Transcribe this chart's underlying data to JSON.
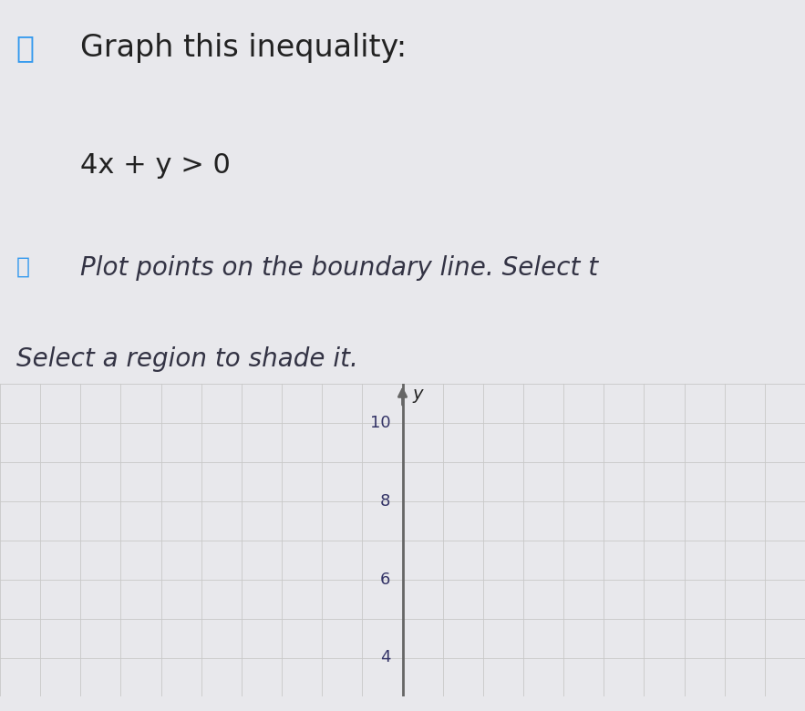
{
  "title_line1": "Graph this inequality:",
  "inequality": "4x + y > 0",
  "subtitle_line1": "Plot points on the boundary line. Select t",
  "subtitle_line2": "Select a region to shade it.",
  "background_color": "#e8e8ec",
  "grid_bg_color": "#f0eeea",
  "text_color": "#222222",
  "subtitle_text_color": "#333344",
  "grid_color": "#c8c8c8",
  "axis_color": "#666666",
  "icon_color": "#3399ee",
  "tick_label_color": "#333366",
  "xmin": -10,
  "xmax": 10,
  "ymin": 3,
  "ymax": 11,
  "yticks": [
    4,
    6,
    8,
    10
  ],
  "title_fontsize": 24,
  "inequality_fontsize": 22,
  "subtitle_fontsize": 20,
  "dark_bar_color": "#555555"
}
